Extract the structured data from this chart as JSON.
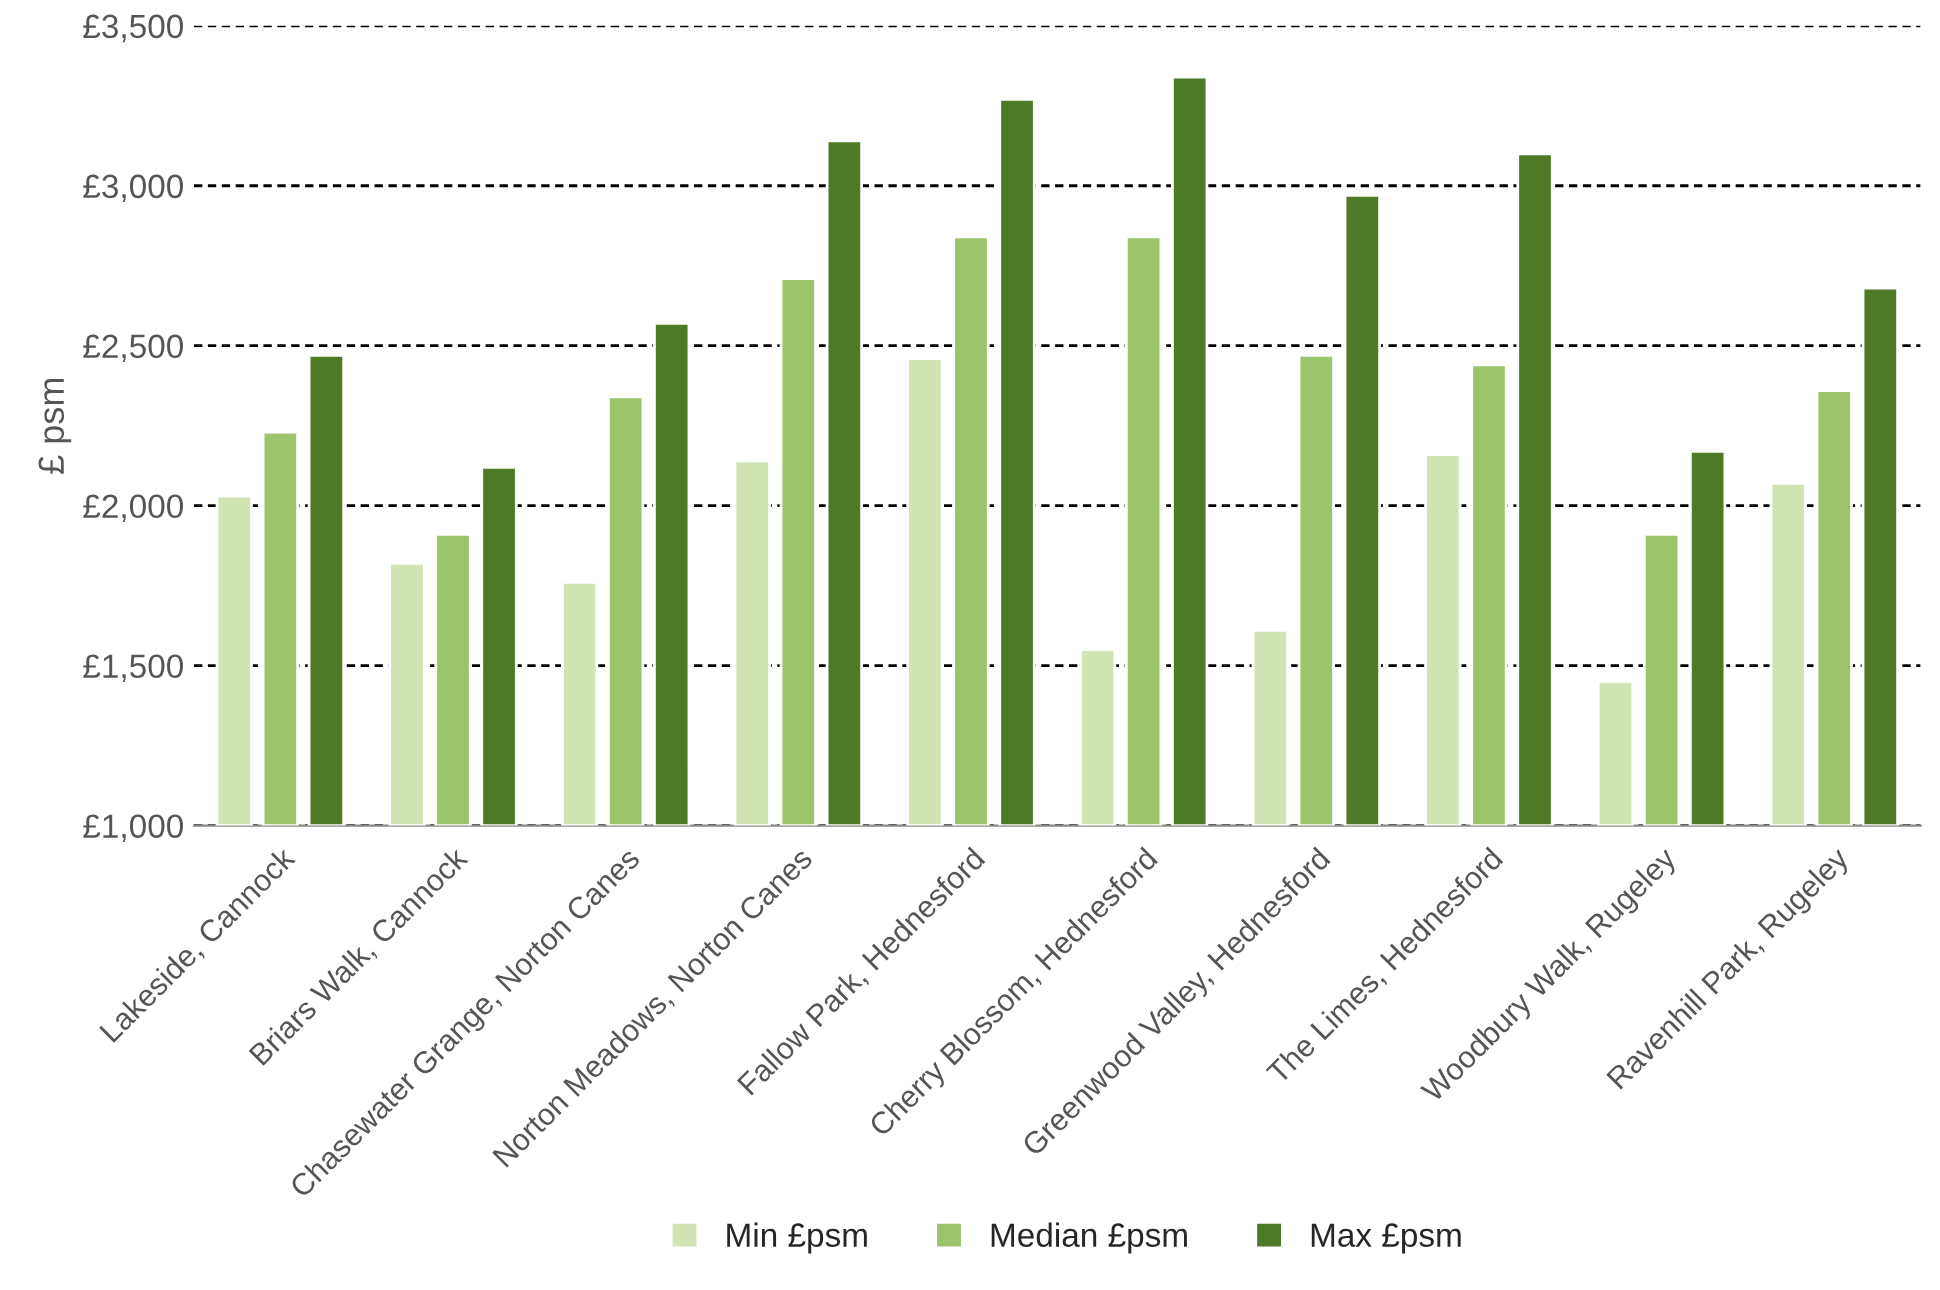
{
  "chart_data": {
    "type": "bar",
    "ylabel": "£ psm",
    "categories": [
      "Lakeside, Cannock",
      "Briars Walk, Cannock",
      "Chasewater Grange, Norton Canes",
      "Norton Meadows, Norton Canes",
      "Fallow Park, Hednesford",
      "Cherry Blossom, Hednesford",
      "Greenwood Valley, Hednesford",
      "The Limes, Hednesford",
      "Woodbury Walk, Rugeley",
      "Ravenhill Park, Rugeley"
    ],
    "series": [
      {
        "name": "Min £psm",
        "color": "#d3e4b4",
        "values": [
          2030,
          1820,
          1760,
          2140,
          2460,
          1550,
          1610,
          2160,
          1450,
          2070
        ]
      },
      {
        "name": "Median £psm",
        "color": "#9cc46b",
        "values": [
          2230,
          1910,
          2340,
          2710,
          2840,
          2840,
          2470,
          2440,
          1910,
          2360
        ]
      },
      {
        "name": "Max £psm",
        "color": "#4e7a27",
        "values": [
          2470,
          2120,
          2570,
          3140,
          3270,
          3340,
          2970,
          3100,
          2170,
          2680
        ]
      }
    ],
    "ylim": [
      1000,
      3500
    ],
    "yticks": [
      {
        "value": 1000,
        "label": "£1,000"
      },
      {
        "value": 1500,
        "label": "£1,500"
      },
      {
        "value": 2000,
        "label": "£2,000"
      },
      {
        "value": 2500,
        "label": "£2,500"
      },
      {
        "value": 3000,
        "label": "£3,000"
      },
      {
        "value": 3500,
        "label": "£3,500"
      }
    ],
    "grid": "y",
    "legend": "bottom"
  }
}
